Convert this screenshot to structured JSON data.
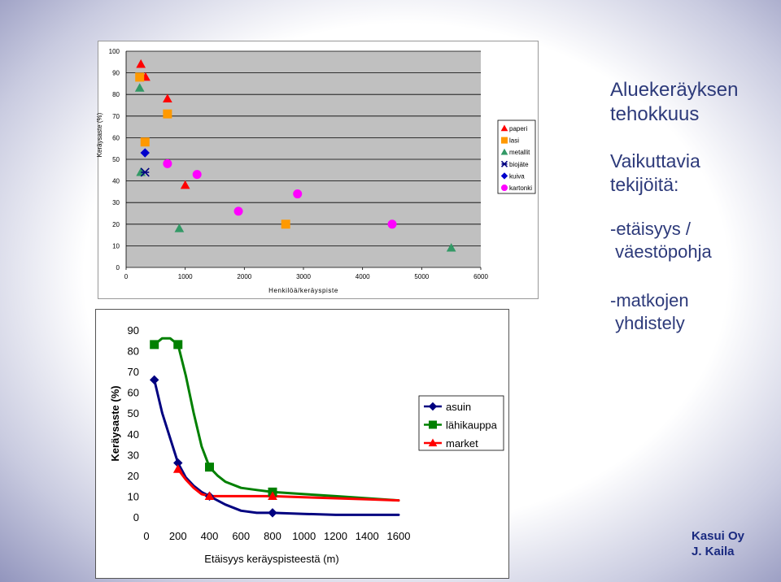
{
  "slide": {
    "title_line1": "Aluekeräyksen",
    "title_line2": "tehokkuus",
    "subtitle_line1": "Vaikuttavia",
    "subtitle_line2": "tekijöitä:",
    "bullet1": "-etäisyys /\n väestöpohja",
    "bullet2": "-matkojen\n yhdistely",
    "credit_line1": "Kasui Oy",
    "credit_line2": "J. Kaila"
  },
  "colors": {
    "paperi": "#ff0000",
    "lasi": "#ff9900",
    "metallit": "#339966",
    "biojate": "#000080",
    "kuiva": "#0000cc",
    "kartonki": "#ff00ff",
    "asuin": "#000080",
    "lahikauppa": "#008000",
    "market": "#ff0000"
  },
  "chart_data": [
    {
      "type": "scatter",
      "xlabel": "Henkilöä/keräyspiste",
      "ylabel": "Keräysaste (%)",
      "xlim": [
        0,
        6000
      ],
      "ylim": [
        0,
        100
      ],
      "xticks": [
        0,
        1000,
        2000,
        3000,
        4000,
        5000,
        6000
      ],
      "yticks": [
        0,
        10,
        20,
        30,
        40,
        50,
        60,
        70,
        80,
        90,
        100
      ],
      "legend_position": "right",
      "series": [
        {
          "name": "paperi",
          "marker": "triangle",
          "points": [
            [
              250,
              94
            ],
            [
              330,
              88
            ],
            [
              700,
              78
            ],
            [
              1000,
              38
            ]
          ]
        },
        {
          "name": "lasi",
          "marker": "square",
          "points": [
            [
              230,
              88
            ],
            [
              320,
              58
            ],
            [
              700,
              71
            ],
            [
              2700,
              20
            ]
          ]
        },
        {
          "name": "metallit",
          "marker": "triangle",
          "points": [
            [
              230,
              83
            ],
            [
              250,
              44
            ],
            [
              900,
              18
            ],
            [
              5500,
              9
            ]
          ]
        },
        {
          "name": "biojäte",
          "marker": "x",
          "points": [
            [
              320,
              44
            ]
          ]
        },
        {
          "name": "kuiva",
          "marker": "diamond",
          "points": [
            [
              320,
              53
            ]
          ]
        },
        {
          "name": "kartonki",
          "marker": "circle",
          "points": [
            [
              700,
              48
            ],
            [
              1200,
              43
            ],
            [
              1900,
              26
            ],
            [
              2900,
              34
            ],
            [
              4500,
              20
            ]
          ]
        }
      ]
    },
    {
      "type": "line",
      "xlabel": "Etäisyys keräyspisteestä (m)",
      "ylabel": "Keräysaste (%)",
      "xlim": [
        0,
        1600
      ],
      "ylim": [
        0,
        90
      ],
      "xticks": [
        0,
        200,
        400,
        600,
        800,
        1000,
        1200,
        1400,
        1600
      ],
      "yticks": [
        0,
        10,
        20,
        30,
        40,
        50,
        60,
        70,
        80,
        90
      ],
      "legend_position": "right",
      "series": [
        {
          "name": "asuin",
          "marker": "diamond",
          "markers": [
            [
              50,
              66
            ],
            [
              200,
              26
            ],
            [
              400,
              10
            ],
            [
              800,
              2
            ]
          ],
          "curve": [
            [
              50,
              66
            ],
            [
              100,
              50
            ],
            [
              150,
              38
            ],
            [
              200,
              26
            ],
            [
              250,
              19
            ],
            [
              300,
              15
            ],
            [
              350,
              12
            ],
            [
              400,
              10
            ],
            [
              500,
              6
            ],
            [
              600,
              3
            ],
            [
              700,
              2
            ],
            [
              800,
              2
            ],
            [
              1000,
              1.5
            ],
            [
              1200,
              1
            ],
            [
              1500,
              1
            ],
            [
              1600,
              1
            ]
          ]
        },
        {
          "name": "lähikauppa",
          "marker": "square",
          "markers": [
            [
              50,
              83
            ],
            [
              200,
              83
            ],
            [
              400,
              24
            ],
            [
              800,
              12
            ]
          ],
          "curve": [
            [
              50,
              83
            ],
            [
              100,
              86
            ],
            [
              150,
              86
            ],
            [
              200,
              83
            ],
            [
              250,
              68
            ],
            [
              300,
              50
            ],
            [
              350,
              34
            ],
            [
              400,
              24
            ],
            [
              450,
              20
            ],
            [
              500,
              17
            ],
            [
              600,
              14
            ],
            [
              700,
              13
            ],
            [
              800,
              12
            ],
            [
              1000,
              11
            ],
            [
              1200,
              10
            ],
            [
              1400,
              9
            ],
            [
              1600,
              8
            ]
          ]
        },
        {
          "name": "market",
          "marker": "triangle",
          "markers": [
            [
              200,
              23
            ],
            [
              400,
              10
            ],
            [
              800,
              10
            ]
          ],
          "curve": [
            [
              200,
              23
            ],
            [
              250,
              18
            ],
            [
              300,
              14
            ],
            [
              350,
              11
            ],
            [
              400,
              10
            ],
            [
              500,
              10
            ],
            [
              600,
              10
            ],
            [
              700,
              10
            ],
            [
              800,
              10
            ],
            [
              1000,
              9.5
            ],
            [
              1200,
              9
            ],
            [
              1400,
              8.5
            ],
            [
              1600,
              8
            ]
          ]
        }
      ]
    }
  ]
}
